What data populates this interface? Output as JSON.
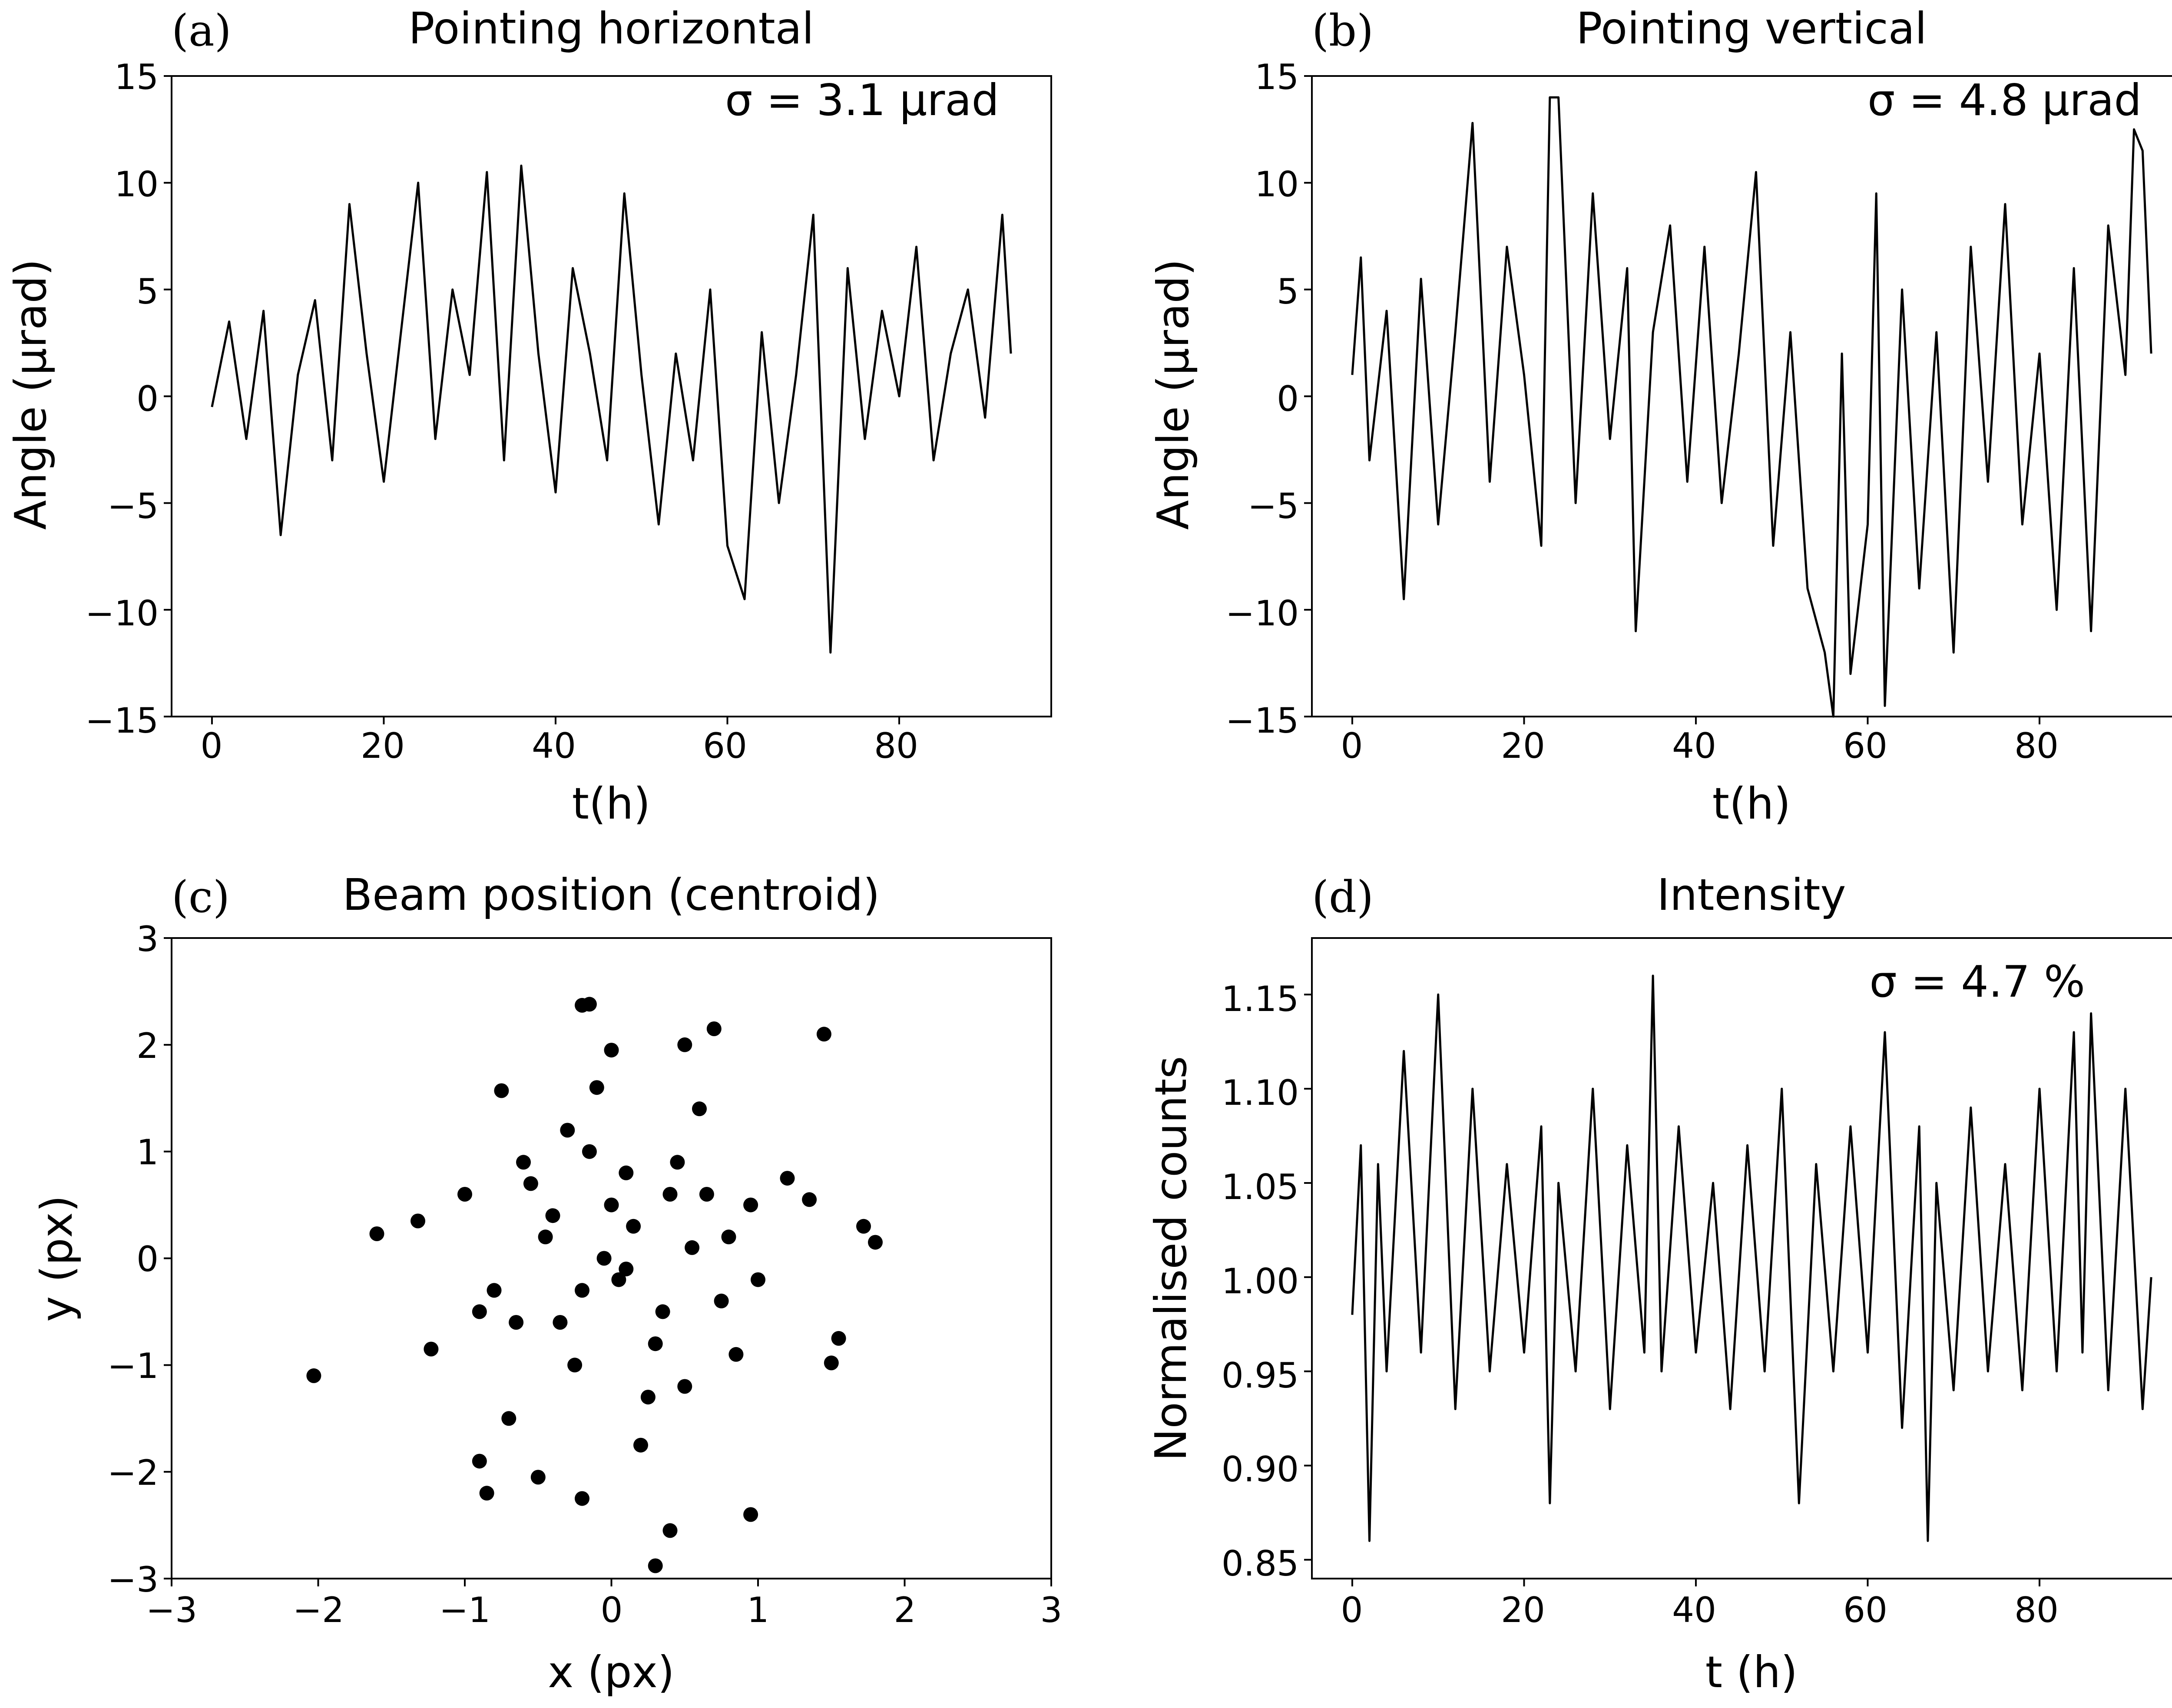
{
  "figure": {
    "panels": [
      {
        "letter": "(a)",
        "title": "Pointing horizontal",
        "xlabel": "t(h)",
        "ylabel": "Angle (μrad)",
        "annotation": "σ = 3.1 μrad",
        "xticks": [
          "0",
          "20",
          "40",
          "60",
          "80"
        ],
        "yticks": [
          "15",
          "10",
          "5",
          "0",
          "−5",
          "−10",
          "−15"
        ]
      },
      {
        "letter": "(b)",
        "title": "Pointing vertical",
        "xlabel": "t(h)",
        "ylabel": "Angle (μrad)",
        "annotation": "σ = 4.8 μrad",
        "xticks": [
          "0",
          "20",
          "40",
          "60",
          "80"
        ],
        "yticks": [
          "15",
          "10",
          "5",
          "0",
          "−5",
          "−10",
          "−15"
        ]
      },
      {
        "letter": "(c)",
        "title": "Beam position (centroid)",
        "xlabel": "x (px)",
        "ylabel": "y (px)",
        "annotation": "",
        "xticks": [
          "−3",
          "−2",
          "−1",
          "0",
          "1",
          "2",
          "3"
        ],
        "yticks": [
          "3",
          "2",
          "1",
          "0",
          "−1",
          "−2",
          "−3"
        ]
      },
      {
        "letter": "(d)",
        "title": "Intensity",
        "xlabel": "t (h)",
        "ylabel": "Normalised counts",
        "annotation": "σ = 4.7 %",
        "xticks": [
          "0",
          "20",
          "40",
          "60",
          "80"
        ],
        "yticks": [
          "1.15",
          "1.10",
          "1.05",
          "1.00",
          "0.95",
          "0.90",
          "0.85"
        ]
      }
    ]
  },
  "chart_data": [
    {
      "type": "line",
      "title": "Pointing horizontal",
      "xlabel": "t(h)",
      "ylabel": "Angle (μrad)",
      "xlim": [
        -4.7,
        97.7
      ],
      "ylim": [
        -15,
        15
      ],
      "xticks": [
        0,
        20,
        40,
        60,
        80
      ],
      "yticks": [
        15,
        10,
        5,
        0,
        -5,
        -10,
        -15
      ],
      "annotation": "σ = 3.1 μrad",
      "series": [
        {
          "name": "horizontal pointing",
          "x": [
            0,
            2,
            4,
            6,
            8,
            10,
            12,
            14,
            16,
            18,
            20,
            22,
            24,
            26,
            28,
            30,
            32,
            34,
            36,
            38,
            40,
            42,
            44,
            46,
            48,
            50,
            52,
            54,
            56,
            58,
            60,
            62,
            64,
            66,
            68,
            70,
            72,
            74,
            76,
            78,
            80,
            82,
            84,
            86,
            88,
            90,
            92,
            93
          ],
          "values": [
            -0.5,
            3.5,
            -2,
            4,
            -6.5,
            1,
            4.5,
            -3,
            9,
            2,
            -4,
            3,
            10,
            -2,
            5,
            1,
            10.5,
            -3,
            10.8,
            2,
            -4.5,
            6,
            2,
            -3,
            9.5,
            1,
            -6,
            2,
            -3,
            5,
            -7,
            -9.5,
            3,
            -5,
            1,
            8.5,
            -12,
            6,
            -2,
            4,
            0,
            7,
            -3,
            2,
            5,
            -1,
            8.5,
            2
          ]
        }
      ]
    },
    {
      "type": "line",
      "title": "Pointing vertical",
      "xlabel": "t(h)",
      "ylabel": "Angle (μrad)",
      "xlim": [
        -4.7,
        97.7
      ],
      "ylim": [
        -15,
        15
      ],
      "xticks": [
        0,
        20,
        40,
        60,
        80
      ],
      "yticks": [
        15,
        10,
        5,
        0,
        -5,
        -10,
        -15
      ],
      "annotation": "σ = 4.8 μrad",
      "series": [
        {
          "name": "vertical pointing",
          "x": [
            0,
            1,
            2,
            4,
            6,
            8,
            10,
            12,
            14,
            16,
            18,
            20,
            22,
            23,
            24,
            26,
            28,
            30,
            32,
            33,
            35,
            37,
            39,
            41,
            43,
            45,
            47,
            49,
            51,
            53,
            55,
            56,
            57,
            58,
            60,
            61,
            62,
            64,
            66,
            68,
            70,
            72,
            74,
            76,
            78,
            80,
            82,
            84,
            86,
            88,
            90,
            91,
            92,
            93
          ],
          "values": [
            1,
            6.5,
            -3,
            4,
            -9.5,
            5.5,
            -6,
            3,
            12.8,
            -4,
            7,
            1,
            -7,
            14,
            14,
            -5,
            9.5,
            -2,
            6,
            -11,
            3,
            8,
            -4,
            7,
            -5,
            2,
            10.5,
            -7,
            3,
            -9,
            -12,
            -15,
            2,
            -13,
            -6,
            9.5,
            -14.5,
            5,
            -9,
            3,
            -12,
            7,
            -4,
            9,
            -6,
            2,
            -10,
            6,
            -11,
            8,
            1,
            12.5,
            11.5,
            2
          ]
        }
      ]
    },
    {
      "type": "scatter",
      "title": "Beam position (centroid)",
      "xlabel": "x (px)",
      "ylabel": "y (px)",
      "xlim": [
        -3,
        3
      ],
      "ylim": [
        -3,
        3
      ],
      "xticks": [
        -3,
        -2,
        -1,
        0,
        1,
        2,
        3
      ],
      "yticks": [
        3,
        2,
        1,
        0,
        -1,
        -2,
        -3
      ],
      "series": [
        {
          "name": "centroid",
          "x": [
            -2.03,
            -1.6,
            -1.32,
            -1.23,
            -0.9,
            -0.75,
            -0.85,
            -0.6,
            -0.2,
            -0.15,
            -0.2,
            0.0,
            0.4,
            0.5,
            0.95,
            1.45,
            1.8,
            1.72,
            1.5,
            1.55,
            1.2,
            1.35,
            0.7,
            0.3,
            -0.1,
            -0.5,
            -0.3,
            0.2,
            0.6,
            -0.8,
            -1.0,
            0.1,
            0.35,
            0.05,
            -0.4,
            0.55,
            0.85,
            -0.65,
            0.15,
            -0.25,
            0.45,
            0.75,
            -0.05,
            0.25,
            -0.45,
            0.65,
            -0.7,
            0.95,
            1.0,
            -0.15,
            0.3,
            -0.35,
            0.0,
            0.5,
            -0.55,
            0.1,
            0.8,
            -0.9,
            0.4,
            -0.2
          ],
          "y": [
            -1.1,
            0.23,
            0.35,
            -0.85,
            -1.9,
            1.57,
            -2.2,
            0.9,
            2.37,
            2.38,
            -2.25,
            1.95,
            -2.55,
            2.0,
            -2.4,
            2.1,
            0.15,
            0.3,
            -0.98,
            -0.75,
            0.75,
            0.55,
            2.15,
            -2.88,
            1.6,
            -2.05,
            1.2,
            -1.75,
            1.4,
            -0.3,
            0.6,
            0.8,
            -0.5,
            -0.2,
            0.4,
            0.1,
            -0.9,
            -0.6,
            0.3,
            -1.0,
            0.9,
            -0.4,
            0.0,
            -1.3,
            0.2,
            0.6,
            -1.5,
            0.5,
            -0.2,
            1.0,
            -0.8,
            -0.6,
            0.5,
            -1.2,
            0.7,
            -0.1,
            0.2,
            -0.5,
            0.6,
            -0.3
          ]
        }
      ]
    },
    {
      "type": "line",
      "title": "Intensity",
      "xlabel": "t (h)",
      "ylabel": "Normalised counts",
      "xlim": [
        -4.7,
        97.7
      ],
      "ylim": [
        0.84,
        1.18
      ],
      "xticks": [
        0,
        20,
        40,
        60,
        80
      ],
      "yticks": [
        1.15,
        1.1,
        1.05,
        1.0,
        0.95,
        0.9,
        0.85
      ],
      "annotation": "σ = 4.7 %",
      "series": [
        {
          "name": "normalised counts",
          "x": [
            0,
            1,
            2,
            3,
            4,
            6,
            8,
            10,
            12,
            14,
            16,
            18,
            20,
            22,
            23,
            24,
            26,
            28,
            30,
            32,
            34,
            35,
            36,
            38,
            40,
            42,
            44,
            46,
            48,
            50,
            52,
            54,
            56,
            58,
            60,
            62,
            64,
            66,
            67,
            68,
            70,
            72,
            74,
            76,
            78,
            80,
            82,
            84,
            85,
            86,
            88,
            90,
            92,
            93
          ],
          "values": [
            0.98,
            1.07,
            0.86,
            1.06,
            0.95,
            1.12,
            0.96,
            1.15,
            0.93,
            1.1,
            0.95,
            1.06,
            0.96,
            1.08,
            0.88,
            1.05,
            0.95,
            1.1,
            0.93,
            1.07,
            0.96,
            1.16,
            0.95,
            1.08,
            0.96,
            1.05,
            0.93,
            1.07,
            0.95,
            1.1,
            0.88,
            1.06,
            0.95,
            1.08,
            0.96,
            1.13,
            0.92,
            1.08,
            0.86,
            1.05,
            0.94,
            1.09,
            0.95,
            1.06,
            0.94,
            1.1,
            0.95,
            1.13,
            0.96,
            1.14,
            0.94,
            1.1,
            0.93,
            1.0
          ]
        }
      ]
    }
  ]
}
